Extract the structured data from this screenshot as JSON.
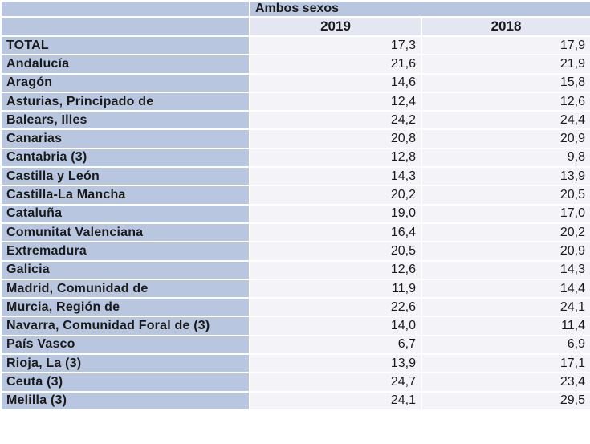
{
  "group_header": "Ambos sexos",
  "years": [
    "2019",
    "2018"
  ],
  "rows": [
    {
      "label": "TOTAL",
      "v2019": "17,3",
      "v2018": "17,9"
    },
    {
      "label": "Andalucía",
      "v2019": "21,6",
      "v2018": "21,9"
    },
    {
      "label": "Aragón",
      "v2019": "14,6",
      "v2018": "15,8"
    },
    {
      "label": "Asturias, Principado de",
      "v2019": "12,4",
      "v2018": "12,6"
    },
    {
      "label": "Balears, Illes",
      "v2019": "24,2",
      "v2018": "24,4"
    },
    {
      "label": "Canarias",
      "v2019": "20,8",
      "v2018": "20,9"
    },
    {
      "label": "Cantabria (3)",
      "v2019": "12,8",
      "v2018": "9,8"
    },
    {
      "label": "Castilla y León",
      "v2019": "14,3",
      "v2018": "13,9"
    },
    {
      "label": "Castilla-La Mancha",
      "v2019": "20,2",
      "v2018": "20,5"
    },
    {
      "label": "Cataluña",
      "v2019": "19,0",
      "v2018": "17,0"
    },
    {
      "label": "Comunitat Valenciana",
      "v2019": "16,4",
      "v2018": "20,2"
    },
    {
      "label": "Extremadura",
      "v2019": "20,5",
      "v2018": "20,9"
    },
    {
      "label": "Galicia",
      "v2019": "12,6",
      "v2018": "14,3"
    },
    {
      "label": "Madrid, Comunidad de",
      "v2019": "11,9",
      "v2018": "14,4"
    },
    {
      "label": "Murcia, Región de",
      "v2019": "22,6",
      "v2018": "24,1"
    },
    {
      "label": "Navarra, Comunidad Foral de (3)",
      "v2019": "14,0",
      "v2018": "11,4"
    },
    {
      "label": "País Vasco",
      "v2019": "6,7",
      "v2018": "6,9"
    },
    {
      "label": "Rioja, La (3)",
      "v2019": "13,9",
      "v2018": "17,1"
    },
    {
      "label": "Ceuta (3)",
      "v2019": "24,7",
      "v2018": "23,4"
    },
    {
      "label": "Melilla (3)",
      "v2019": "24,1",
      "v2018": "29,5"
    }
  ]
}
